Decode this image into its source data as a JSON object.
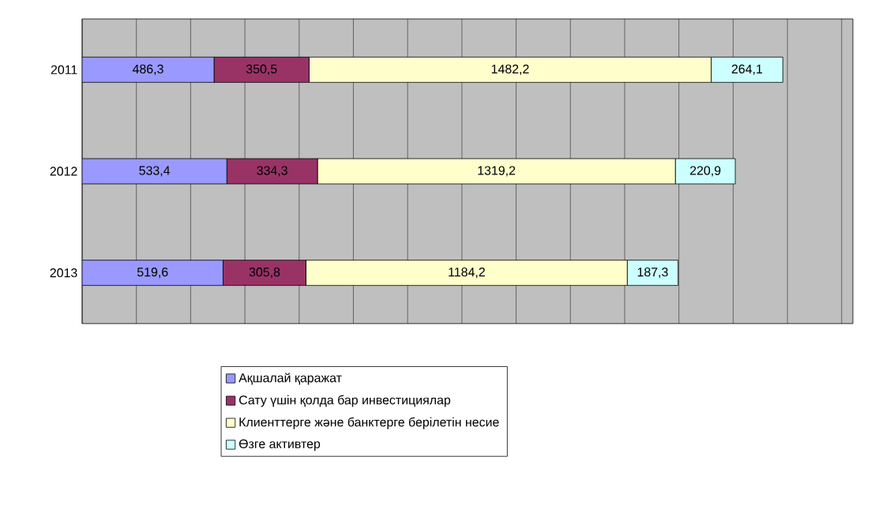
{
  "chart_data": {
    "type": "bar",
    "orientation": "horizontal",
    "stacked": true,
    "relative": false,
    "grid": "x",
    "legend": "bottom",
    "tick_labels": "y",
    "categories": [
      "2011",
      "2012",
      "2013"
    ],
    "series": [
      {
        "name": "Ақшалай қаражат",
        "color": "#9999ff",
        "values": [
          486.3,
          533.4,
          519.6
        ],
        "value_labels": [
          "486,3",
          "533,4",
          "519,6"
        ]
      },
      {
        "name": "Сату үшін қолда бар инвестициялар",
        "color": "#993366",
        "values": [
          350.5,
          334.3,
          305.8
        ],
        "value_labels": [
          "350,5",
          "334,3",
          "305,8"
        ]
      },
      {
        "name": "Клиенттерге және банктерге берілетін несие",
        "color": "#ffffcc",
        "values": [
          1482.2,
          1319.2,
          1184.2
        ],
        "value_labels": [
          "1482,2",
          "1319,2",
          "1184,2"
        ]
      },
      {
        "name": "Өзге активтер",
        "color": "#ccffff",
        "values": [
          264.1,
          220.9,
          187.3
        ],
        "value_labels": [
          "264,1",
          "220,9",
          "187,3"
        ]
      }
    ]
  }
}
